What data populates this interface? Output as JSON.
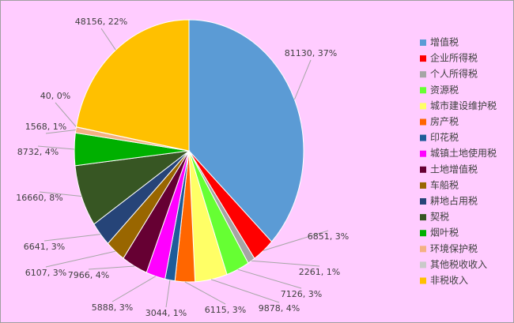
{
  "chart_data": {
    "type": "pie",
    "categories": [
      "增值税",
      "企业所得税",
      "个人所得税",
      "资源税",
      "城市建设维护税",
      "房产税",
      "印花税",
      "城镇土地使用税",
      "土地增值税",
      "车船税",
      "耕地占用税",
      "契税",
      "烟叶税",
      "环境保护税",
      "其他税收收入",
      "非税收入"
    ],
    "values": [
      81130,
      6851,
      2261,
      7126,
      9878,
      6115,
      3044,
      5888,
      7966,
      6107,
      6641,
      16660,
      8732,
      1568,
      40,
      48156
    ],
    "value_labels": [
      "81130, 37%",
      "6851, 3%",
      "2261, 1%",
      "7126, 3%",
      "9878, 4%",
      "6115, 3%",
      "3044, 1%",
      "5888, 3%",
      "7966, 4%",
      "6107, 3%",
      "6641, 3%",
      "16660, 8%",
      "8732, 4%",
      "1568, 1%",
      "40, 0%",
      "48156, 22%"
    ],
    "colors": [
      "#5b9bd5",
      "#ff0000",
      "#a5a5a5",
      "#66ff33",
      "#ffff66",
      "#ff6600",
      "#1f5c99",
      "#ff00ff",
      "#660033",
      "#996600",
      "#264478",
      "#375623",
      "#00b000",
      "#f4b183",
      "#c9c9c9",
      "#ffc000"
    ],
    "legend": "right"
  }
}
